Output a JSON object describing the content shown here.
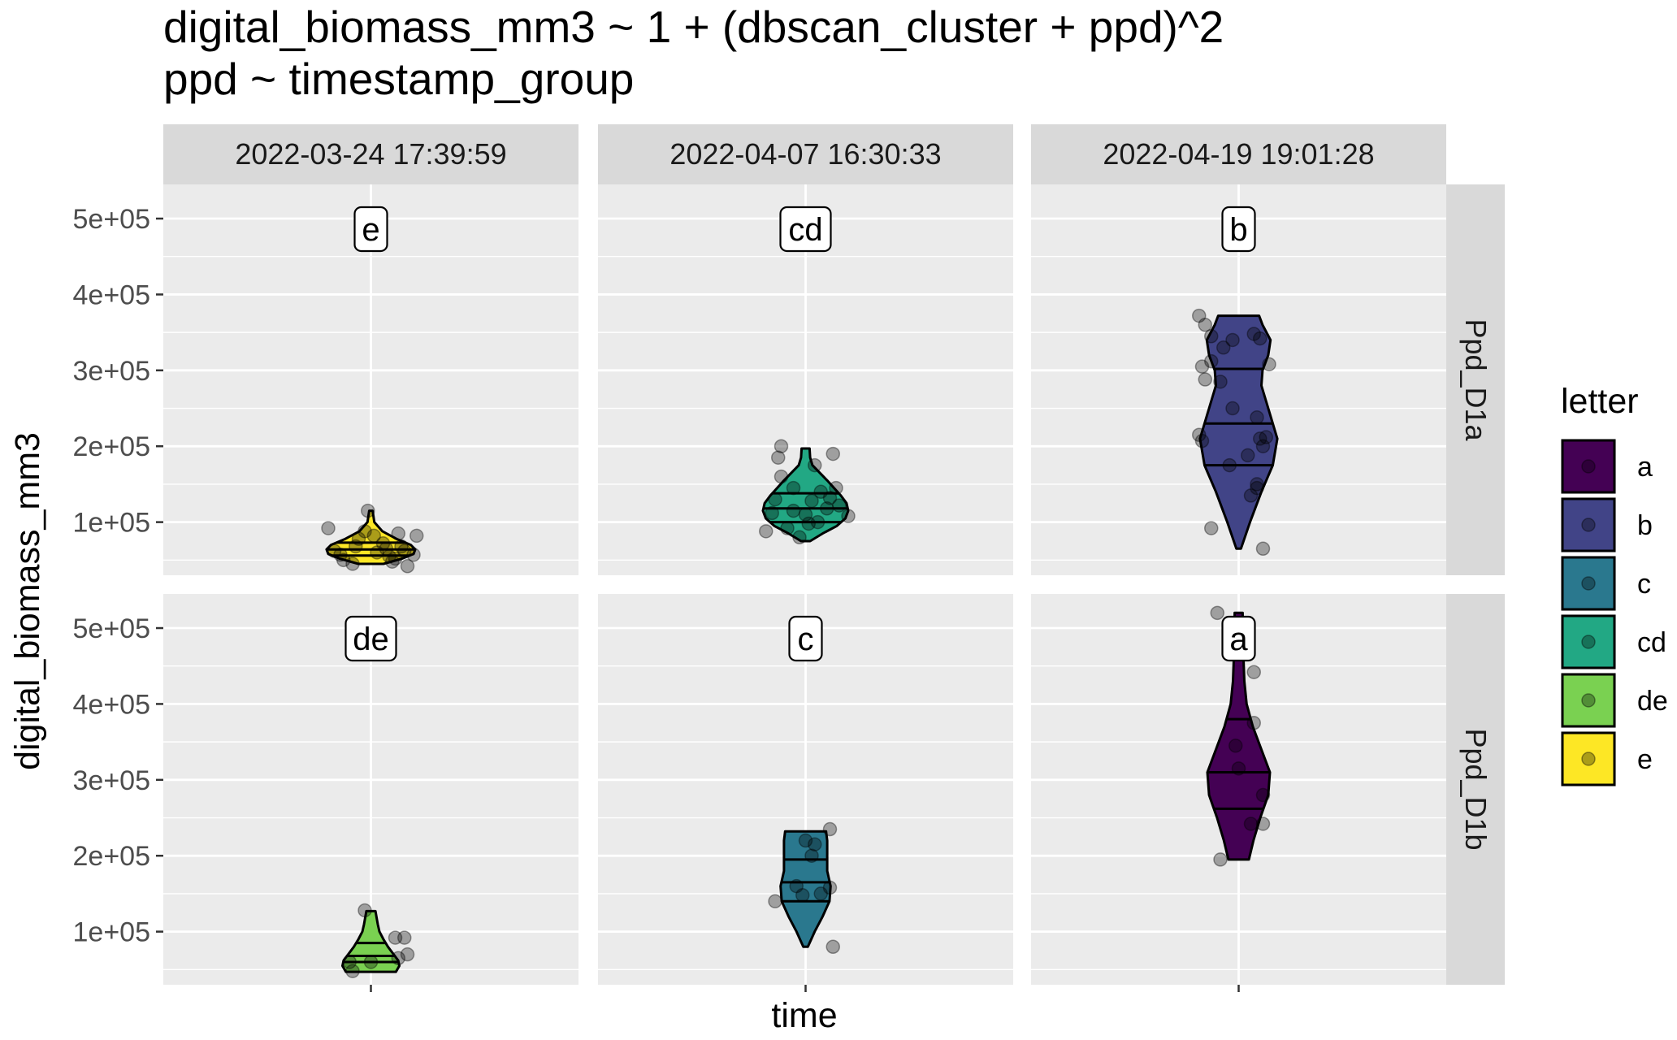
{
  "chart_data": {
    "type": "violin",
    "title": "digital_biomass_mm3 ~ 1 + (dbscan_cluster + ppd)^2",
    "subtitle": "ppd ~ timestamp_group",
    "xlabel": "time",
    "ylabel": "digital_biomass_mm3",
    "y_ticks": [
      100000,
      200000,
      300000,
      400000,
      500000
    ],
    "y_tick_labels": [
      "1e+05",
      "2e+05",
      "3e+05",
      "4e+05",
      "5e+05"
    ],
    "ylim": [
      30000,
      545000
    ],
    "grid": true,
    "col_facets": [
      "2022-03-24 17:39:59",
      "2022-04-07 16:30:33",
      "2022-04-19 19:01:28"
    ],
    "row_facets": [
      "Ppd_D1a",
      "Ppd_D1b"
    ],
    "legend": {
      "title": "letter",
      "placement": "right",
      "entries": [
        {
          "label": "a",
          "color": "#440154"
        },
        {
          "label": "b",
          "color": "#414487"
        },
        {
          "label": "c",
          "color": "#2A788E"
        },
        {
          "label": "cd",
          "color": "#22A884"
        },
        {
          "label": "de",
          "color": "#7AD151"
        },
        {
          "label": "e",
          "color": "#FDE725"
        }
      ]
    },
    "panels": [
      {
        "row": 0,
        "col": 0,
        "letter": "e",
        "color": "#FDE725",
        "quantiles": [
          56000,
          64000,
          73000
        ],
        "violin": [
          [
            45000,
            0.22
          ],
          [
            52000,
            0.55
          ],
          [
            58000,
            0.75
          ],
          [
            64000,
            0.78
          ],
          [
            70000,
            0.7
          ],
          [
            78000,
            0.45
          ],
          [
            88000,
            0.2
          ],
          [
            100000,
            0.06
          ],
          [
            115000,
            0.03
          ]
        ],
        "points": [
          [
            -0.7,
            92000
          ],
          [
            -0.6,
            62000
          ],
          [
            -0.45,
            50000
          ],
          [
            -0.3,
            45000
          ],
          [
            -0.2,
            78000
          ],
          [
            -0.1,
            88000
          ],
          [
            0.05,
            82000
          ],
          [
            0.1,
            60000
          ],
          [
            -0.05,
            115000
          ],
          [
            0.2,
            72000
          ],
          [
            0.3,
            55000
          ],
          [
            0.35,
            48000
          ],
          [
            0.45,
            85000
          ],
          [
            0.5,
            68000
          ],
          [
            0.55,
            62000
          ],
          [
            0.6,
            42000
          ],
          [
            0.7,
            57000
          ],
          [
            0.75,
            82000
          ],
          [
            -0.5,
            57000
          ],
          [
            0.25,
            65000
          ],
          [
            -0.25,
            68000
          ],
          [
            0.4,
            52000
          ]
        ]
      },
      {
        "row": 0,
        "col": 1,
        "letter": "cd",
        "color": "#22A884",
        "quantiles": [
          100000,
          118000,
          138000
        ],
        "violin": [
          [
            75000,
            0.08
          ],
          [
            85000,
            0.3
          ],
          [
            95000,
            0.55
          ],
          [
            105000,
            0.7
          ],
          [
            115000,
            0.75
          ],
          [
            125000,
            0.72
          ],
          [
            135000,
            0.62
          ],
          [
            145000,
            0.5
          ],
          [
            155000,
            0.38
          ],
          [
            165000,
            0.25
          ],
          [
            175000,
            0.12
          ],
          [
            185000,
            0.08
          ],
          [
            197000,
            0.07
          ]
        ],
        "points": [
          [
            -0.65,
            88000
          ],
          [
            -0.55,
            112000
          ],
          [
            -0.5,
            130000
          ],
          [
            -0.45,
            185000
          ],
          [
            -0.4,
            160000
          ],
          [
            -0.4,
            200000
          ],
          [
            -0.3,
            92000
          ],
          [
            -0.2,
            145000
          ],
          [
            -0.1,
            80000
          ],
          [
            0.0,
            110000
          ],
          [
            0.05,
            98000
          ],
          [
            0.1,
            128000
          ],
          [
            0.15,
            175000
          ],
          [
            0.2,
            100000
          ],
          [
            0.25,
            140000
          ],
          [
            0.35,
            118000
          ],
          [
            0.4,
            132000
          ],
          [
            0.45,
            190000
          ],
          [
            0.5,
            145000
          ],
          [
            0.55,
            122000
          ],
          [
            0.7,
            108000
          ],
          [
            -0.2,
            115000
          ]
        ]
      },
      {
        "row": 0,
        "col": 2,
        "letter": "b",
        "color": "#414487",
        "quantiles": [
          175000,
          230000,
          302000
        ],
        "violin": [
          [
            65000,
            0.04
          ],
          [
            100000,
            0.2
          ],
          [
            140000,
            0.4
          ],
          [
            175000,
            0.6
          ],
          [
            210000,
            0.68
          ],
          [
            250000,
            0.52
          ],
          [
            280000,
            0.4
          ],
          [
            300000,
            0.42
          ],
          [
            320000,
            0.52
          ],
          [
            340000,
            0.56
          ],
          [
            360000,
            0.42
          ],
          [
            372000,
            0.36
          ]
        ],
        "points": [
          [
            -0.65,
            372000
          ],
          [
            -0.55,
            360000
          ],
          [
            -0.45,
            345000
          ],
          [
            -0.25,
            330000
          ],
          [
            -0.1,
            340000
          ],
          [
            -0.45,
            312000
          ],
          [
            -0.6,
            305000
          ],
          [
            -0.55,
            288000
          ],
          [
            0.25,
            348000
          ],
          [
            0.35,
            342000
          ],
          [
            0.5,
            308000
          ],
          [
            0.15,
            188000
          ],
          [
            0.3,
            238000
          ],
          [
            0.35,
            210000
          ],
          [
            0.4,
            200000
          ],
          [
            0.45,
            212000
          ],
          [
            0.3,
            150000
          ],
          [
            0.2,
            135000
          ],
          [
            -0.65,
            215000
          ],
          [
            -0.6,
            207000
          ],
          [
            -0.1,
            250000
          ],
          [
            -0.3,
            285000
          ],
          [
            -0.45,
            92000
          ],
          [
            0.4,
            65000
          ],
          [
            0.3,
            145000
          ],
          [
            -0.15,
            175000
          ]
        ]
      },
      {
        "row": 1,
        "col": 0,
        "letter": "de",
        "color": "#7AD151",
        "quantiles": [
          60000,
          68000,
          85000
        ],
        "violin": [
          [
            47000,
            0.44
          ],
          [
            55000,
            0.5
          ],
          [
            62000,
            0.48
          ],
          [
            70000,
            0.4
          ],
          [
            80000,
            0.3
          ],
          [
            90000,
            0.22
          ],
          [
            100000,
            0.15
          ],
          [
            110000,
            0.12
          ],
          [
            127000,
            0.08
          ]
        ],
        "points": [
          [
            -0.35,
            60000
          ],
          [
            -0.3,
            48000
          ],
          [
            -0.1,
            128000
          ],
          [
            0.0,
            60000
          ],
          [
            0.4,
            92000
          ],
          [
            0.45,
            65000
          ],
          [
            0.55,
            92000
          ],
          [
            0.6,
            70000
          ]
        ]
      },
      {
        "row": 1,
        "col": 1,
        "letter": "c",
        "color": "#2A788E",
        "quantiles": [
          140000,
          165000,
          195000
        ],
        "violin": [
          [
            80000,
            0.04
          ],
          [
            100000,
            0.16
          ],
          [
            120000,
            0.3
          ],
          [
            140000,
            0.42
          ],
          [
            160000,
            0.44
          ],
          [
            180000,
            0.38
          ],
          [
            200000,
            0.38
          ],
          [
            220000,
            0.38
          ],
          [
            232000,
            0.36
          ]
        ],
        "points": [
          [
            -0.5,
            140000
          ],
          [
            -0.15,
            160000
          ],
          [
            -0.05,
            148000
          ],
          [
            0.0,
            220000
          ],
          [
            0.1,
            200000
          ],
          [
            0.15,
            215000
          ],
          [
            0.25,
            150000
          ],
          [
            0.4,
            235000
          ],
          [
            0.4,
            158000
          ],
          [
            0.45,
            80000
          ]
        ]
      },
      {
        "row": 1,
        "col": 2,
        "letter": "a",
        "color": "#440154",
        "quantiles": [
          262000,
          310000,
          380000
        ],
        "violin": [
          [
            195000,
            0.18
          ],
          [
            220000,
            0.26
          ],
          [
            250000,
            0.38
          ],
          [
            280000,
            0.52
          ],
          [
            310000,
            0.55
          ],
          [
            340000,
            0.4
          ],
          [
            370000,
            0.25
          ],
          [
            400000,
            0.14
          ],
          [
            430000,
            0.1
          ],
          [
            470000,
            0.08
          ],
          [
            520000,
            0.07
          ]
        ],
        "points": [
          [
            -0.3,
            195000
          ],
          [
            -0.35,
            520000
          ],
          [
            -0.05,
            345000
          ],
          [
            0.0,
            315000
          ],
          [
            0.2,
            242000
          ],
          [
            0.25,
            375000
          ],
          [
            0.25,
            442000
          ],
          [
            0.4,
            280000
          ],
          [
            0.4,
            242000
          ]
        ]
      }
    ]
  }
}
